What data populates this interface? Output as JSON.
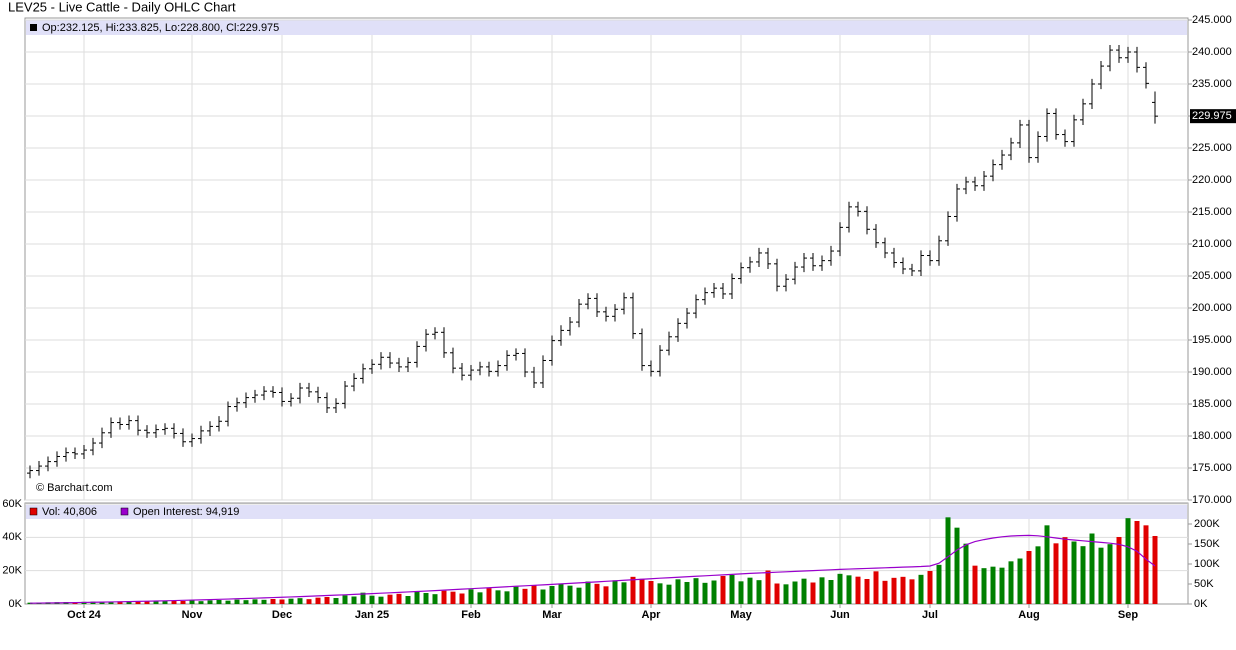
{
  "chart_data": [
    {
      "type": "ohlc",
      "title": "LEV25 - Live Cattle - Daily OHLC Chart",
      "legend": "Op:232.125, Hi:233.825, Lo:228.800, Cl:229.975",
      "annotation": "© Barchart.com",
      "color": "#000000",
      "grid": true,
      "ylim": [
        170,
        245
      ],
      "yticks": [
        {
          "value": 170,
          "label": "170.000"
        },
        {
          "value": 175,
          "label": "175.000"
        },
        {
          "value": 180,
          "label": "180.000"
        },
        {
          "value": 185,
          "label": "185.000"
        },
        {
          "value": 190,
          "label": "190.000"
        },
        {
          "value": 195,
          "label": "195.000"
        },
        {
          "value": 200,
          "label": "200.000"
        },
        {
          "value": 205,
          "label": "205.000"
        },
        {
          "value": 210,
          "label": "210.000"
        },
        {
          "value": 215,
          "label": "215.000"
        },
        {
          "value": 220,
          "label": "220.000"
        },
        {
          "value": 225,
          "label": "225.000"
        },
        {
          "value": 230,
          "label": "230.000"
        },
        {
          "value": 235,
          "label": "235.000"
        },
        {
          "value": 240,
          "label": "240.000"
        },
        {
          "value": 245,
          "label": "245.000"
        }
      ],
      "open": [
        174.2,
        174.6,
        175.3,
        176.0,
        176.8,
        177.4,
        177.2,
        177.8,
        178.9,
        180.5,
        182.1,
        181.8,
        182.4,
        180.9,
        180.5,
        181.0,
        181.2,
        180.4,
        179.1,
        179.6,
        180.8,
        181.5,
        182.3,
        184.6,
        185.2,
        186.0,
        186.4,
        187.0,
        186.8,
        185.4,
        185.9,
        187.5,
        186.9,
        186.0,
        184.4,
        185.1,
        187.8,
        189.0,
        190.5,
        191.2,
        192.3,
        191.4,
        190.8,
        191.5,
        194.0,
        195.9,
        196.2,
        193.0,
        190.6,
        189.5,
        190.3,
        190.8,
        190.1,
        191.0,
        192.6,
        192.9,
        190.0,
        188.3,
        191.8,
        194.9,
        196.5,
        197.8,
        200.6,
        201.5,
        199.4,
        198.7,
        199.8,
        201.6,
        196.0,
        191.0,
        190.1,
        193.4,
        195.5,
        197.6,
        199.2,
        201.3,
        202.4,
        203.1,
        202.2,
        204.6,
        206.3,
        207.2,
        208.6,
        206.9,
        203.4,
        204.5,
        206.4,
        207.8,
        206.6,
        207.4,
        208.9,
        212.6,
        215.8,
        215.1,
        212.3,
        210.2,
        208.6,
        207.1,
        206.1,
        205.8,
        208.2,
        207.4,
        210.5,
        214.3,
        218.6,
        219.7,
        219.1,
        220.6,
        222.4,
        223.9,
        225.8,
        228.6,
        223.5,
        226.8,
        230.4,
        227.1,
        226.0,
        229.4,
        231.9,
        235.0,
        237.8,
        240.3,
        239.1,
        240.0,
        237.6,
        232.125
      ],
      "high": [
        175.4,
        176.1,
        176.8,
        177.6,
        178.2,
        178.2,
        178.6,
        179.7,
        181.3,
        182.9,
        182.9,
        183.2,
        183.2,
        181.7,
        181.8,
        182.0,
        182.0,
        181.2,
        180.4,
        181.6,
        182.3,
        183.1,
        185.4,
        186.0,
        186.8,
        187.2,
        187.8,
        187.8,
        187.6,
        186.7,
        188.3,
        188.3,
        187.7,
        186.8,
        185.9,
        188.6,
        189.8,
        191.3,
        192.0,
        193.1,
        193.1,
        192.2,
        192.3,
        194.8,
        196.7,
        197.0,
        197.0,
        193.8,
        191.4,
        191.1,
        191.6,
        191.6,
        191.8,
        193.4,
        193.7,
        193.7,
        190.8,
        192.6,
        195.7,
        197.3,
        198.6,
        201.4,
        202.3,
        202.3,
        200.2,
        200.6,
        202.4,
        202.4,
        196.8,
        191.8,
        194.2,
        196.3,
        198.4,
        200.0,
        202.1,
        203.2,
        203.9,
        203.9,
        205.4,
        207.1,
        208.0,
        209.4,
        209.4,
        207.7,
        205.3,
        207.2,
        208.6,
        208.6,
        208.2,
        209.7,
        213.4,
        216.6,
        216.6,
        215.9,
        213.1,
        211.0,
        209.4,
        207.9,
        206.9,
        209.0,
        209.0,
        211.3,
        215.1,
        219.4,
        220.5,
        220.5,
        221.4,
        223.2,
        224.7,
        226.6,
        229.4,
        229.4,
        227.6,
        231.2,
        231.2,
        227.9,
        230.2,
        232.7,
        235.8,
        238.6,
        241.1,
        241.1,
        240.8,
        240.8,
        238.4,
        233.825
      ],
      "low": [
        173.4,
        173.8,
        174.5,
        175.2,
        176.0,
        176.4,
        176.4,
        177.0,
        178.1,
        179.7,
        181.0,
        181.0,
        180.1,
        179.7,
        179.7,
        180.2,
        179.6,
        178.3,
        178.3,
        178.8,
        180.0,
        180.7,
        181.5,
        183.8,
        184.4,
        185.2,
        185.6,
        186.0,
        184.6,
        184.6,
        185.1,
        186.1,
        185.2,
        183.6,
        183.6,
        184.3,
        187.0,
        188.2,
        189.7,
        190.4,
        190.6,
        190.0,
        190.0,
        190.7,
        193.2,
        195.1,
        192.2,
        189.8,
        188.7,
        188.7,
        189.5,
        189.3,
        189.3,
        190.2,
        191.8,
        189.2,
        187.5,
        187.5,
        191.0,
        194.1,
        195.7,
        197.0,
        199.8,
        198.6,
        197.9,
        197.9,
        199.0,
        195.2,
        190.2,
        189.3,
        189.3,
        192.6,
        194.7,
        196.8,
        198.4,
        200.5,
        201.6,
        201.4,
        201.4,
        203.8,
        205.5,
        206.4,
        206.1,
        202.6,
        202.6,
        203.7,
        205.6,
        205.8,
        205.8,
        206.6,
        208.1,
        211.8,
        214.3,
        211.5,
        209.4,
        207.8,
        206.3,
        205.3,
        205.0,
        205.0,
        206.6,
        206.6,
        209.7,
        213.5,
        217.8,
        218.3,
        218.3,
        219.8,
        221.6,
        223.1,
        225.0,
        222.7,
        222.7,
        226.0,
        226.3,
        225.2,
        225.2,
        228.6,
        231.1,
        234.2,
        237.0,
        238.3,
        238.3,
        236.8,
        234.3,
        228.8
      ],
      "close": [
        174.6,
        175.3,
        176.0,
        176.8,
        177.4,
        177.2,
        177.8,
        178.9,
        180.5,
        182.1,
        181.8,
        182.4,
        180.9,
        180.5,
        181.0,
        181.2,
        180.4,
        179.1,
        179.6,
        180.8,
        181.5,
        182.3,
        184.6,
        185.2,
        186.0,
        186.4,
        187.0,
        186.8,
        185.4,
        185.9,
        187.5,
        186.9,
        186.0,
        184.4,
        185.1,
        187.8,
        189.0,
        190.5,
        191.2,
        192.3,
        191.4,
        190.8,
        191.5,
        194.0,
        195.9,
        196.2,
        193.0,
        190.6,
        189.5,
        190.3,
        190.8,
        190.1,
        191.0,
        192.6,
        192.9,
        190.0,
        188.3,
        191.8,
        194.9,
        196.5,
        197.8,
        200.6,
        201.5,
        199.4,
        198.7,
        199.8,
        201.6,
        196.0,
        191.0,
        190.1,
        193.4,
        195.5,
        197.6,
        199.2,
        201.3,
        202.4,
        203.1,
        202.2,
        204.6,
        206.3,
        207.2,
        208.6,
        206.9,
        203.4,
        204.5,
        206.4,
        207.8,
        206.6,
        207.4,
        208.9,
        212.6,
        215.8,
        215.1,
        212.3,
        210.2,
        208.6,
        207.1,
        206.1,
        205.8,
        208.2,
        207.4,
        210.5,
        214.3,
        218.6,
        219.7,
        219.1,
        220.6,
        222.4,
        223.9,
        225.8,
        228.6,
        223.5,
        226.8,
        230.4,
        227.1,
        226.0,
        229.4,
        231.9,
        235.0,
        237.8,
        240.3,
        239.1,
        240.0,
        237.6,
        235.1,
        229.975
      ]
    },
    {
      "type": "bar",
      "up_color": "#008000",
      "down_color": "#e00000",
      "grid": true,
      "categories": [
        null,
        null,
        null,
        null,
        null,
        null,
        "Oct 24",
        null,
        null,
        null,
        null,
        null,
        null,
        null,
        null,
        null,
        null,
        null,
        "Nov",
        null,
        null,
        null,
        null,
        null,
        null,
        null,
        null,
        null,
        "Dec",
        null,
        null,
        null,
        null,
        null,
        null,
        null,
        null,
        null,
        "Jan 25",
        null,
        null,
        null,
        null,
        null,
        null,
        null,
        null,
        null,
        null,
        "Feb",
        null,
        null,
        null,
        null,
        null,
        null,
        null,
        null,
        "Mar",
        null,
        null,
        null,
        null,
        null,
        null,
        null,
        null,
        null,
        null,
        "Apr",
        null,
        null,
        null,
        null,
        null,
        null,
        null,
        null,
        null,
        "May",
        null,
        null,
        null,
        null,
        null,
        null,
        null,
        null,
        null,
        null,
        "Jun",
        null,
        null,
        null,
        null,
        null,
        null,
        null,
        null,
        null,
        "Jul",
        null,
        null,
        null,
        null,
        null,
        null,
        null,
        null,
        null,
        null,
        "Aug",
        null,
        null,
        null,
        null,
        null,
        null,
        null,
        null,
        null,
        null,
        "Sep",
        null,
        null,
        null
      ],
      "ylim": [
        0,
        60000
      ],
      "yticks": [
        {
          "value": 0,
          "label": "0K"
        },
        {
          "value": 20000,
          "label": "20K"
        },
        {
          "value": 40000,
          "label": "40K"
        },
        {
          "value": 60000,
          "label": "60K"
        }
      ],
      "y2lim": [
        0,
        250000
      ],
      "y2ticks": [
        {
          "value": 0,
          "label": "0K"
        },
        {
          "value": 50000,
          "label": "50K"
        },
        {
          "value": 100000,
          "label": "100K"
        },
        {
          "value": 150000,
          "label": "150K"
        },
        {
          "value": 200000,
          "label": "200K"
        }
      ],
      "series": [
        {
          "name": "Vol: 40,806",
          "color": "#e00000",
          "values": [
            800,
            900,
            1000,
            1100,
            1200,
            1000,
            1300,
            1400,
            1200,
            1500,
            1600,
            1400,
            1800,
            1700,
            1500,
            1900,
            2000,
            1800,
            2100,
            1700,
            2200,
            2400,
            2000,
            2600,
            2300,
            2800,
            2500,
            3000,
            2700,
            3200,
            3500,
            2900,
            3800,
            4200,
            3600,
            5200,
            4500,
            6800,
            5000,
            4400,
            5600,
            6100,
            4800,
            7200,
            6600,
            5900,
            8000,
            7400,
            6300,
            8800,
            7000,
            9500,
            8200,
            7600,
            10400,
            9100,
            11200,
            8700,
            10800,
            12300,
            11000,
            9800,
            13500,
            12100,
            10600,
            14200,
            13000,
            16300,
            15100,
            13800,
            12400,
            11600,
            14800,
            13200,
            15500,
            12700,
            14100,
            16800,
            17400,
            13600,
            15800,
            14300,
            20100,
            12300,
            11800,
            13500,
            15200,
            12900,
            16000,
            14400,
            18100,
            17200,
            16400,
            15000,
            19600,
            13900,
            15700,
            16300,
            14800,
            17500,
            19800,
            23500,
            52000,
            45800,
            36200,
            23000,
            21500,
            22400,
            21800,
            25600,
            27300,
            31800,
            34600,
            47200,
            36400,
            40100,
            37500,
            34700,
            42300,
            33800,
            35900,
            40200,
            51500,
            49800,
            47200,
            40806
          ]
        },
        {
          "name": "Open Interest: 94,919",
          "color": "#9900cc",
          "axis": "y2",
          "values": [
            2000,
            2300,
            2600,
            2900,
            3200,
            3500,
            3900,
            4300,
            4700,
            5100,
            5500,
            6000,
            6500,
            7000,
            7500,
            8000,
            8600,
            9200,
            9800,
            10400,
            11000,
            11700,
            12400,
            13100,
            13800,
            14500,
            15300,
            16100,
            16900,
            17700,
            18500,
            19400,
            20300,
            21200,
            22100,
            23000,
            24000,
            25000,
            26000,
            27000,
            28000,
            29100,
            30200,
            31300,
            32400,
            33500,
            34700,
            35900,
            37100,
            38300,
            39500,
            40700,
            41900,
            43100,
            44300,
            45500,
            46700,
            47900,
            49100,
            50300,
            51500,
            52800,
            54100,
            55400,
            56700,
            58000,
            59300,
            60600,
            61900,
            63200,
            64500,
            65700,
            66900,
            68100,
            69300,
            70500,
            71700,
            72900,
            74100,
            75300,
            76500,
            77500,
            78500,
            79500,
            80500,
            81500,
            82500,
            83500,
            84500,
            85500,
            86500,
            87300,
            88100,
            88900,
            89700,
            90500,
            91300,
            92100,
            92900,
            93700,
            95000,
            102000,
            118000,
            135000,
            148000,
            156000,
            161000,
            165000,
            168000,
            170000,
            171000,
            171500,
            170500,
            168000,
            165000,
            162000,
            160000,
            158000,
            156000,
            154000,
            152000,
            149000,
            143000,
            132000,
            112000,
            94919
          ]
        }
      ]
    }
  ]
}
